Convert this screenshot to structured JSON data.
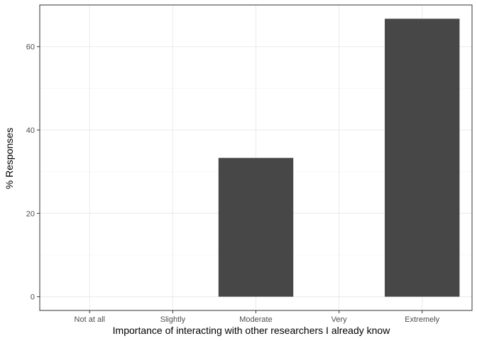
{
  "chart_data": {
    "type": "bar",
    "title": "",
    "xlabel": "Importance of interacting with other researchers I already know",
    "ylabel": "% Responses",
    "categories": [
      "Not at all",
      "Slightly",
      "Moderate",
      "Very",
      "Extremely"
    ],
    "values": [
      0,
      0,
      33.3,
      0,
      66.7
    ],
    "ylim": [
      -3.3,
      70
    ],
    "yticks": [
      0,
      20,
      40,
      60
    ],
    "grid": true,
    "legend": "none",
    "colors": {
      "bar": "#474747",
      "grid_major": "#ebebeb",
      "grid_minor": "#f5f5f5",
      "panel_border": "#333333",
      "tick_text": "#4d4d4d"
    }
  }
}
